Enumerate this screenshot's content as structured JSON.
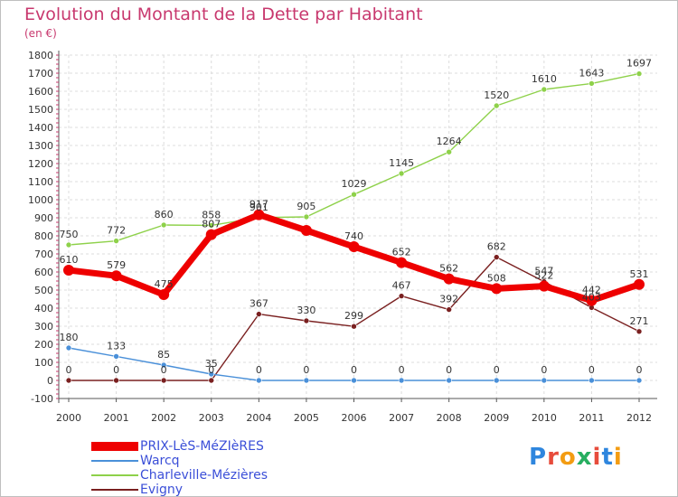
{
  "title": "Evolution du Montant de la Dette par Habitant",
  "subtitle": "(en €)",
  "logo": {
    "text": "Proxiti",
    "letter_colors": [
      "#2e86de",
      "#e74c3c",
      "#f39c12",
      "#27ae60",
      "#e74c3c",
      "#2e86de",
      "#f39c12"
    ]
  },
  "chart_data": {
    "type": "line",
    "x": [
      "2000",
      "2001",
      "2002",
      "2003",
      "2004",
      "2005",
      "2006",
      "2007",
      "2008",
      "2009",
      "2010",
      "2011",
      "2012"
    ],
    "ylim": [
      -100,
      1800
    ],
    "yticks": [
      -100,
      0,
      100,
      200,
      300,
      400,
      500,
      600,
      700,
      800,
      900,
      1000,
      1100,
      1200,
      1300,
      1400,
      1500,
      1600,
      1700,
      1800
    ],
    "grid": true,
    "legend_position": "bottom-left",
    "series": [
      {
        "name": "PRIX-LèS-MéZIèRES",
        "color": "#ee0000",
        "values": [
          610,
          579,
          475,
          807,
          917,
          830,
          740,
          652,
          562,
          508,
          522,
          442,
          531
        ],
        "labels": [
          "610",
          "579",
          "475",
          "807",
          "917",
          "",
          "740",
          "652",
          "562",
          "508",
          "522",
          "442",
          "531"
        ]
      },
      {
        "name": "Warcq",
        "color": "#4a90d9",
        "values": [
          180,
          133,
          85,
          35,
          0,
          0,
          0,
          0,
          0,
          0,
          0,
          0,
          0
        ],
        "labels": [
          "180",
          "133",
          "85",
          "35",
          "0",
          "0",
          "0",
          "0",
          "0",
          "0",
          "0",
          "0",
          "0"
        ]
      },
      {
        "name": "Charleville-Mézières",
        "color": "#8ed14a",
        "values": [
          750,
          772,
          860,
          858,
          901,
          905,
          1029,
          1145,
          1264,
          1520,
          1610,
          1643,
          1697
        ],
        "labels": [
          "750",
          "772",
          "860",
          "858",
          "901",
          "905",
          "1029",
          "1145",
          "1264",
          "1520",
          "1610",
          "1643",
          "1697"
        ]
      },
      {
        "name": "Evigny",
        "color": "#7a2020",
        "values": [
          0,
          0,
          0,
          0,
          367,
          330,
          299,
          467,
          392,
          682,
          547,
          403,
          271
        ],
        "labels": [
          "0",
          "0",
          "0",
          "0",
          "367",
          "330",
          "299",
          "467",
          "392",
          "682",
          "547",
          "403",
          "271"
        ]
      }
    ]
  }
}
